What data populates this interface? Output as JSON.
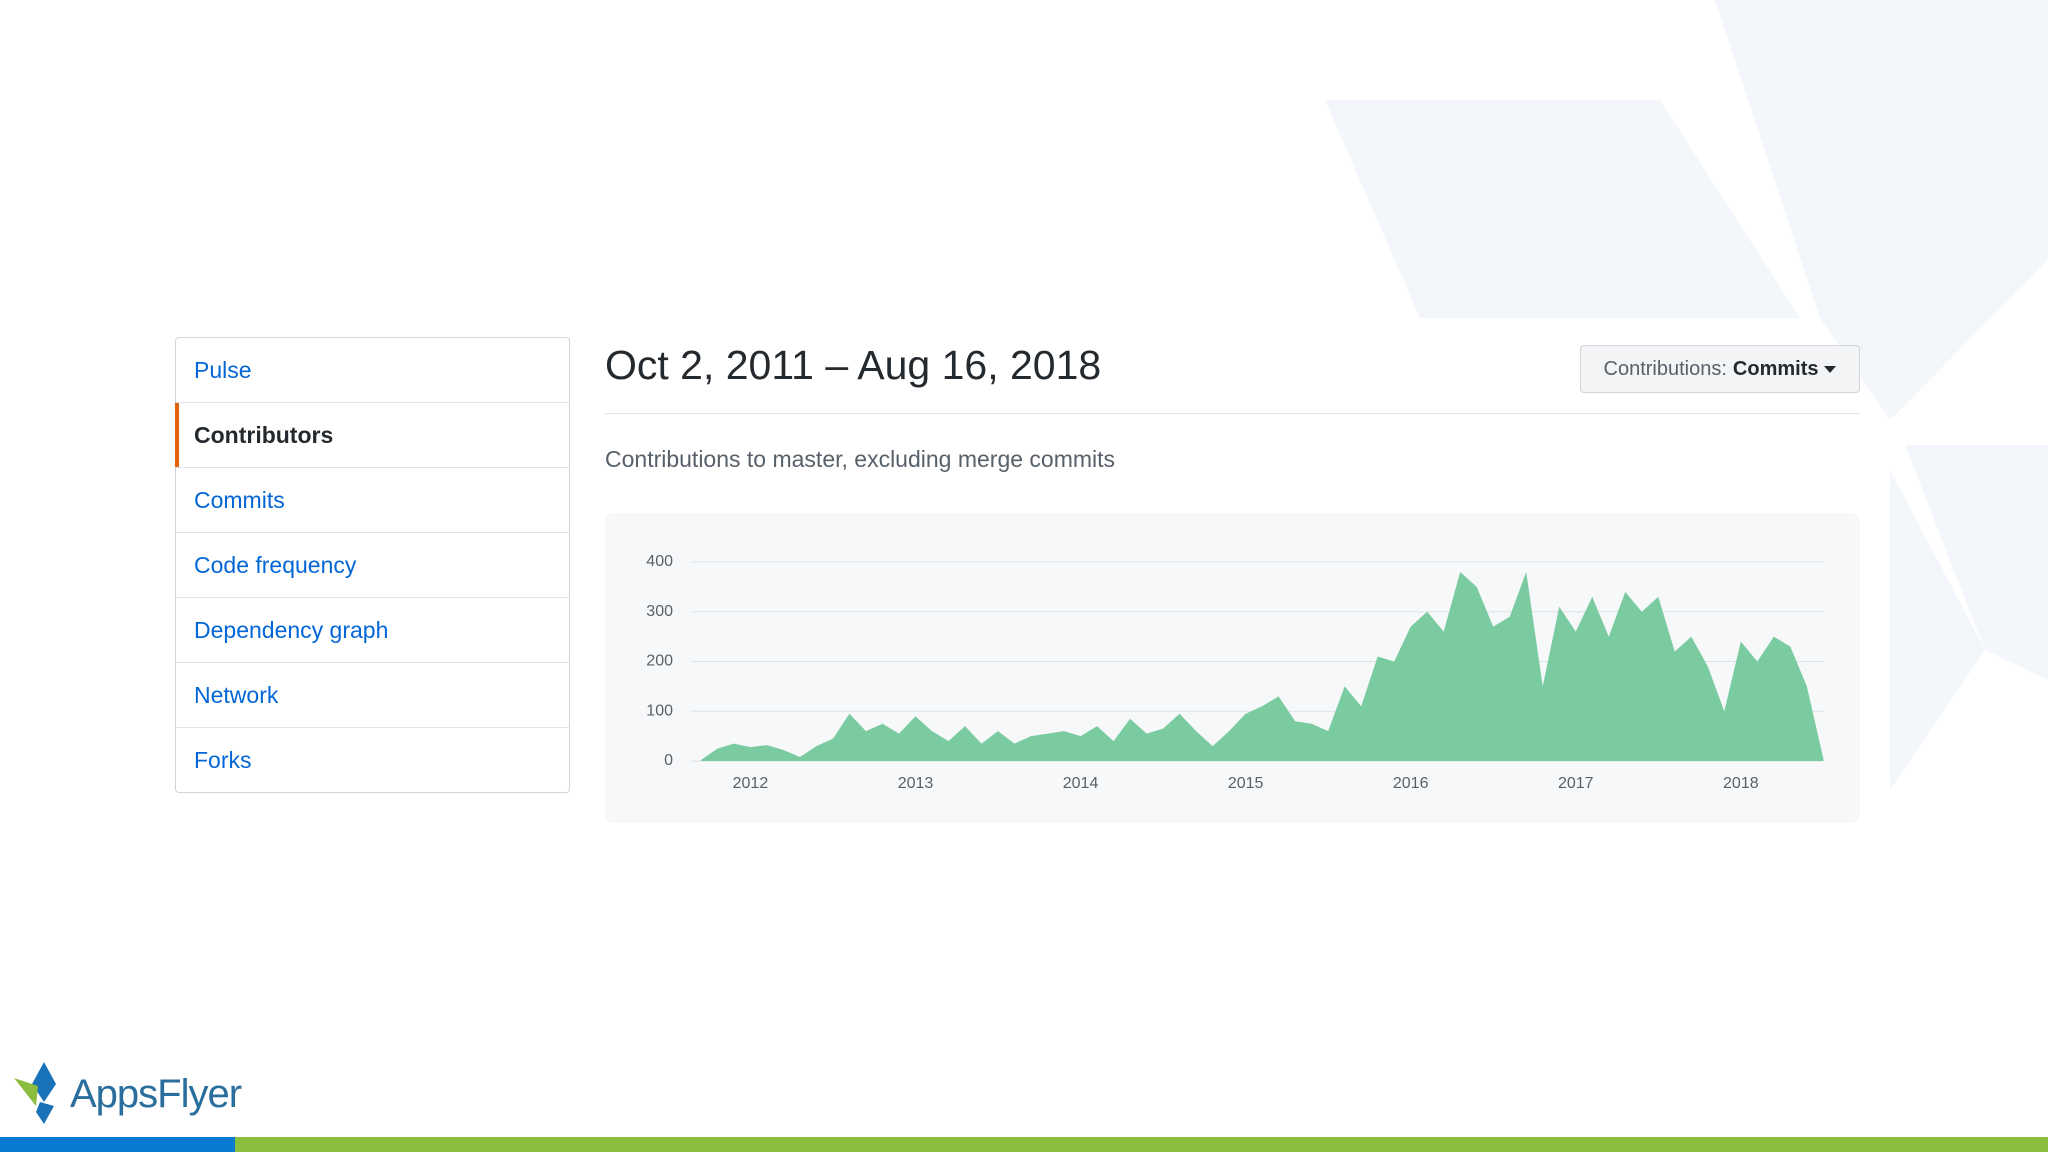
{
  "nav": {
    "items": [
      "Pulse",
      "Contributors",
      "Commits",
      "Code frequency",
      "Dependency graph",
      "Network",
      "Forks"
    ],
    "selected": 1
  },
  "header": {
    "title": "Oct 2, 2011 – Aug 16, 2018",
    "dropdown_label": "Contributions:",
    "dropdown_value": "Commits",
    "subtitle": "Contributions to master, excluding merge commits"
  },
  "brand": "AppsFlyer",
  "chart_data": {
    "type": "area",
    "color": "#7bcba0",
    "x": [
      2011.7,
      2011.8,
      2011.9,
      2012.0,
      2012.1,
      2012.2,
      2012.3,
      2012.4,
      2012.5,
      2012.6,
      2012.7,
      2012.8,
      2012.9,
      2013.0,
      2013.1,
      2013.2,
      2013.3,
      2013.4,
      2013.5,
      2013.6,
      2013.7,
      2013.8,
      2013.9,
      2014.0,
      2014.1,
      2014.2,
      2014.3,
      2014.4,
      2014.5,
      2014.6,
      2014.7,
      2014.8,
      2014.9,
      2015.0,
      2015.1,
      2015.2,
      2015.3,
      2015.4,
      2015.5,
      2015.6,
      2015.7,
      2015.8,
      2015.9,
      2016.0,
      2016.1,
      2016.2,
      2016.3,
      2016.4,
      2016.5,
      2016.6,
      2016.7,
      2016.8,
      2016.9,
      2017.0,
      2017.1,
      2017.2,
      2017.3,
      2017.4,
      2017.5,
      2017.6,
      2017.7,
      2017.8,
      2017.9,
      2018.0,
      2018.1,
      2018.2,
      2018.3,
      2018.4,
      2018.5
    ],
    "values": [
      2,
      25,
      35,
      28,
      32,
      22,
      8,
      30,
      45,
      95,
      60,
      75,
      55,
      90,
      60,
      40,
      70,
      35,
      60,
      35,
      50,
      55,
      60,
      50,
      70,
      40,
      85,
      55,
      65,
      95,
      60,
      30,
      60,
      95,
      110,
      130,
      80,
      75,
      60,
      150,
      110,
      210,
      200,
      270,
      300,
      260,
      380,
      350,
      270,
      290,
      380,
      150,
      310,
      260,
      330,
      250,
      340,
      300,
      330,
      220,
      250,
      190,
      100,
      240,
      200,
      250,
      230,
      150,
      5
    ],
    "xlim": [
      2011.64,
      2018.51
    ],
    "xticks": [
      2012,
      2013,
      2014,
      2015,
      2016,
      2017,
      2018
    ],
    "ylim": [
      0,
      400
    ],
    "yticks": [
      0,
      100,
      200,
      300,
      400
    ],
    "grid": true
  }
}
